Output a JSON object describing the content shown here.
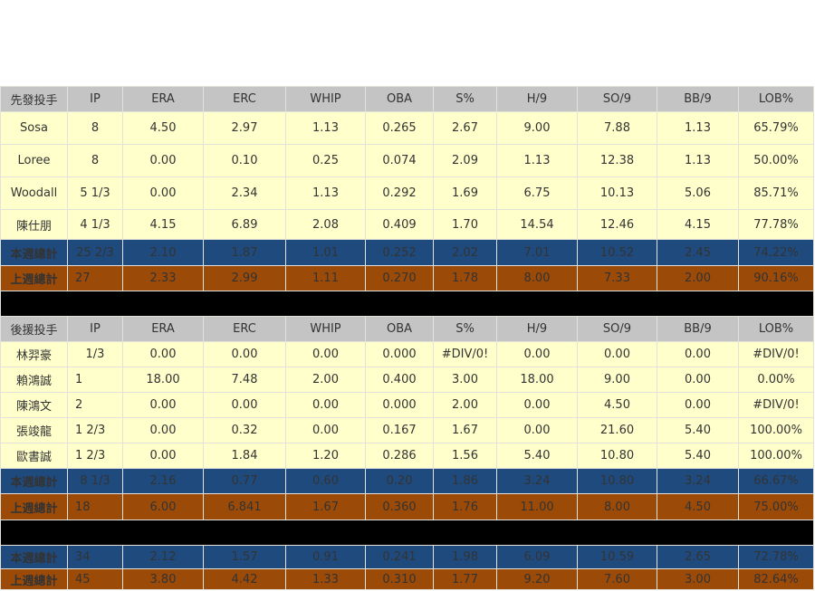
{
  "columns": [
    "IP",
    "ERA",
    "ERC",
    "WHIP",
    "OBA",
    "S%",
    "H/9",
    "SO/9",
    "BB/9",
    "LOB%"
  ],
  "starters": {
    "header": "先發投手",
    "rows": [
      {
        "name": "Sosa",
        "values": [
          "8",
          "4.50",
          "2.97",
          "1.13",
          "0.265",
          "2.67",
          "9.00",
          "7.88",
          "1.13",
          "65.79%"
        ]
      },
      {
        "name": "Loree",
        "values": [
          "8",
          "0.00",
          "0.10",
          "0.25",
          "0.074",
          "2.09",
          "1.13",
          "12.38",
          "1.13",
          "50.00%"
        ]
      },
      {
        "name": "Woodall",
        "values": [
          "5 1/3",
          "0.00",
          "2.34",
          "1.13",
          "0.292",
          "1.69",
          "6.75",
          "10.13",
          "5.06",
          "85.71%"
        ]
      },
      {
        "name": "陳仕朋",
        "values": [
          "4 1/3",
          "4.15",
          "6.89",
          "2.08",
          "0.409",
          "1.70",
          "14.54",
          "12.46",
          "4.15",
          "77.78%"
        ]
      }
    ],
    "this_week": {
      "name": "本週總計",
      "values": [
        "25 2/3",
        "2.10",
        "1.87",
        "1.01",
        "0.252",
        "2.02",
        "7.01",
        "10.52",
        "2.45",
        "74.22%"
      ]
    },
    "last_week": {
      "name": "上週總計",
      "values": [
        "27",
        "2.33",
        "2.99",
        "1.11",
        "0.270",
        "1.78",
        "8.00",
        "7.33",
        "2.00",
        "90.16%"
      ]
    }
  },
  "relievers": {
    "header": "後援投手",
    "rows": [
      {
        "name": "林羿豪",
        "values": [
          "1/3",
          "0.00",
          "0.00",
          "0.00",
          "0.000",
          "#DIV/0!",
          "0.00",
          "0.00",
          "0.00",
          "#DIV/0!"
        ]
      },
      {
        "name": "賴鴻誠",
        "values": [
          "1",
          "18.00",
          "7.48",
          "2.00",
          "0.400",
          "3.00",
          "18.00",
          "9.00",
          "0.00",
          "0.00%"
        ]
      },
      {
        "name": "陳鴻文",
        "values": [
          "2",
          "0.00",
          "0.00",
          "0.00",
          "0.000",
          "2.00",
          "0.00",
          "4.50",
          "0.00",
          "#DIV/0!"
        ]
      },
      {
        "name": "張竣龍",
        "values": [
          "1 2/3",
          "0.00",
          "0.32",
          "0.00",
          "0.167",
          "1.67",
          "0.00",
          "21.60",
          "5.40",
          "100.00%"
        ]
      },
      {
        "name": "歐書誠",
        "values": [
          "1 2/3",
          "0.00",
          "1.84",
          "1.20",
          "0.286",
          "1.56",
          "5.40",
          "10.80",
          "5.40",
          "100.00%"
        ]
      }
    ],
    "this_week": {
      "name": "本週總計",
      "values": [
        "8 1/3",
        "2.16",
        "0.77",
        "0.60",
        "0.20",
        "1.86",
        "3.24",
        "10.80",
        "3.24",
        "66.67%"
      ]
    },
    "last_week": {
      "name": "上週總計",
      "values": [
        "18",
        "6.00",
        "6.841",
        "1.67",
        "0.360",
        "1.76",
        "11.00",
        "8.00",
        "4.50",
        "75.00%"
      ]
    }
  },
  "overall": {
    "this_week": {
      "name": "本週總計",
      "values": [
        "34",
        "2.12",
        "1.57",
        "0.91",
        "0.241",
        "1.98",
        "6.09",
        "10.59",
        "2.65",
        "72.78%"
      ]
    },
    "last_week": {
      "name": "上週總計",
      "values": [
        "45",
        "3.80",
        "4.42",
        "1.33",
        "0.310",
        "1.77",
        "9.20",
        "7.60",
        "3.00",
        "82.64%"
      ]
    }
  },
  "colors": {
    "header": "#c4c4c4",
    "row": "#ffffcc",
    "this_week": "#1f4a7e",
    "last_week": "#9b4a08",
    "separator": "#000000"
  }
}
